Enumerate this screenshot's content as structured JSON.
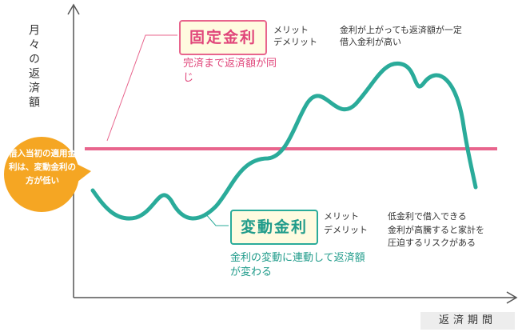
{
  "axes": {
    "y_label": "月々の返済額",
    "x_label": "返済期間"
  },
  "callout": {
    "text": "借入当初の適用金利は、変動金利の方が低い"
  },
  "fixed_rate": {
    "title": "固定金利",
    "description": "完済まで返済額が同じ",
    "merit_label": "メリット",
    "demerit_label": "デメリット",
    "merit": "金利が上がっても返済額が一定",
    "demerit": "借入金利が高い"
  },
  "variable_rate": {
    "title": "変動金利",
    "description": "金利の変動に連動して返済額が変わる",
    "merit_label": "メリット",
    "demerit_label": "デメリット",
    "merit": "低金利で借入できる",
    "demerit": "金利が高騰すると家計を圧迫するリスクがある"
  },
  "colors": {
    "fixed": "#e8658d",
    "variable": "#2aab9a",
    "callout": "#f5a623",
    "axis": "#555555"
  }
}
